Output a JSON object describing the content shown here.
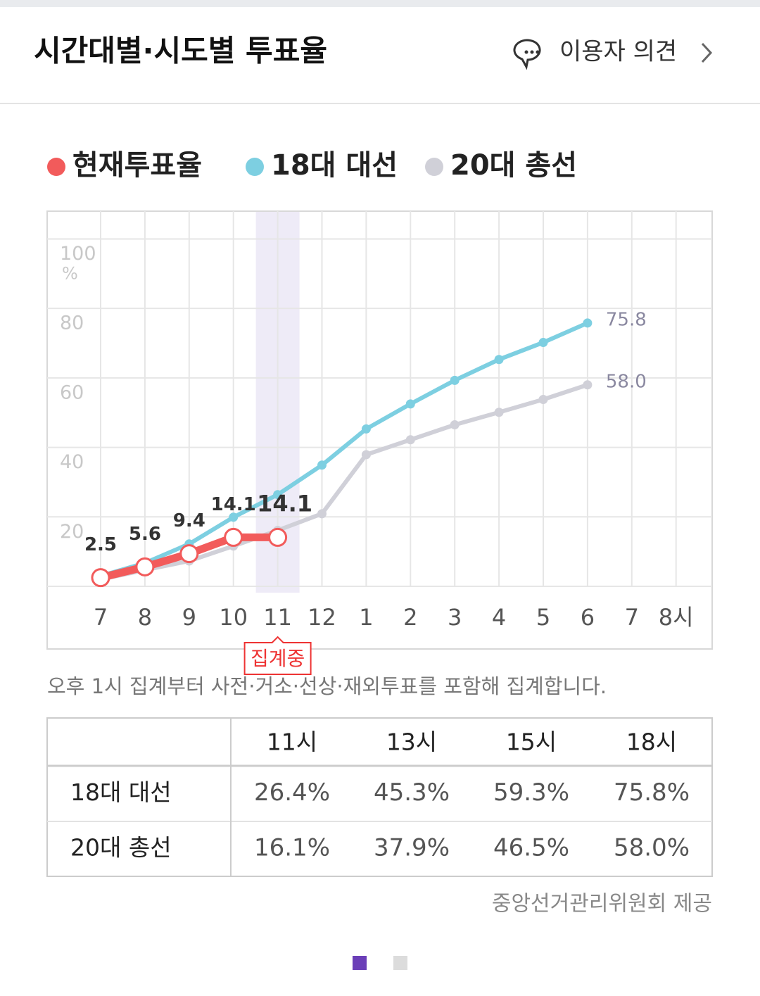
{
  "header": {
    "title": "시간대별·시도별 투표율",
    "feedback": "이용자 의견"
  },
  "chart_data": {
    "type": "line",
    "categories": [
      "7",
      "8",
      "9",
      "10",
      "11",
      "12",
      "1",
      "2",
      "3",
      "4",
      "5",
      "6",
      "7",
      "8시"
    ],
    "series": [
      {
        "name": "현재투표율",
        "color": "#f25b5b",
        "values": [
          2.5,
          5.6,
          9.4,
          14.1,
          14.1,
          null,
          null,
          null,
          null,
          null,
          null,
          null,
          null,
          null
        ]
      },
      {
        "name": "18대 대선",
        "color": "#7dcfe1",
        "values": [
          3.0,
          6.7,
          12.2,
          19.9,
          26.4,
          34.9,
          45.3,
          52.5,
          59.3,
          65.3,
          70.2,
          75.8,
          null,
          null
        ],
        "end_label": "75.8"
      },
      {
        "name": "20대 총선",
        "color": "#d0d0d8",
        "values": [
          2.0,
          4.7,
          7.3,
          11.6,
          16.1,
          20.9,
          37.9,
          42.2,
          46.5,
          50.1,
          53.8,
          58.0,
          null,
          null
        ],
        "end_label": "58.0"
      }
    ],
    "ylim": [
      0,
      108
    ],
    "yticks": [
      20,
      40,
      60,
      80,
      100
    ],
    "y_unit": "%",
    "grid": true,
    "highlight": {
      "category": 4,
      "label": "집계중"
    }
  },
  "note": "오후 1시 집계부터 사전·거소·선상·재외투표를 포함해 집계합니다.",
  "table": {
    "columns": [
      "11시",
      "13시",
      "15시",
      "18시"
    ],
    "rows": [
      {
        "label": "18대 대선",
        "cells": [
          "26.4%",
          "45.3%",
          "59.3%",
          "75.8%"
        ]
      },
      {
        "label": "20대 총선",
        "cells": [
          "16.1%",
          "37.9%",
          "46.5%",
          "58.0%"
        ]
      }
    ]
  },
  "source": "중앙선거관리위원회 제공"
}
